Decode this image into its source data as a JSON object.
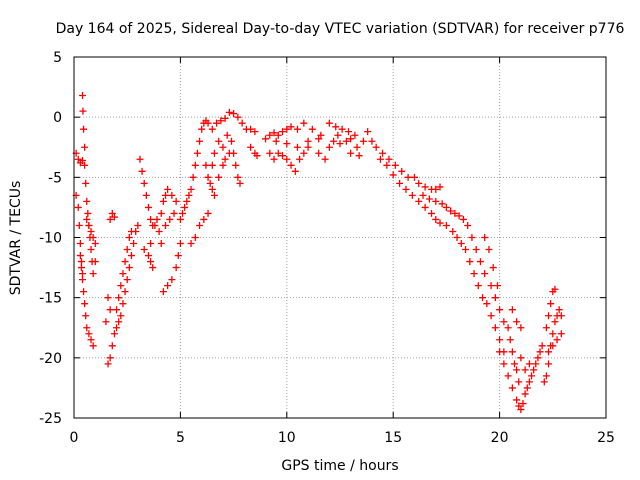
{
  "chart_data": {
    "type": "scatter",
    "title": "Day 164 of 2025, Sidereal Day-to-day VTEC variation (SDTVAR) for receiver p776",
    "xlabel": "GPS time / hours",
    "ylabel": "SDTVAR / TECUs",
    "xlim": [
      0,
      25
    ],
    "ylim": [
      -25,
      5
    ],
    "xticks": [
      0,
      5,
      10,
      15,
      20,
      25
    ],
    "yticks": [
      5,
      0,
      -5,
      -10,
      -15,
      -20,
      -25
    ],
    "xtick_labels": [
      "0",
      "5",
      "10",
      "15",
      "20",
      "25"
    ],
    "ytick_labels": [
      "5",
      "0",
      "-5",
      "-10",
      "-15",
      "-20",
      "-25"
    ],
    "grid": true,
    "marker": "+",
    "color": "#ff0000",
    "series": [
      {
        "name": "SDTVAR",
        "points": [
          [
            0.1,
            -3.0
          ],
          [
            0.2,
            -3.5
          ],
          [
            0.3,
            -3.8
          ],
          [
            0.4,
            -3.6
          ],
          [
            0.5,
            -4.0
          ],
          [
            0.1,
            -6.5
          ],
          [
            0.2,
            -7.5
          ],
          [
            0.25,
            -9.0
          ],
          [
            0.3,
            -10.5
          ],
          [
            0.35,
            -12.0
          ],
          [
            0.4,
            -13.0
          ],
          [
            0.45,
            -14.5
          ],
          [
            0.5,
            -15.5
          ],
          [
            0.55,
            -16.5
          ],
          [
            0.6,
            -17.5
          ],
          [
            0.7,
            -18.0
          ],
          [
            0.8,
            -18.5
          ],
          [
            0.9,
            -19.0
          ],
          [
            0.4,
            1.8
          ],
          [
            0.42,
            0.5
          ],
          [
            0.45,
            -1.0
          ],
          [
            0.5,
            -2.5
          ],
          [
            0.55,
            -5.5
          ],
          [
            0.6,
            -7.0
          ],
          [
            0.65,
            -8.0
          ],
          [
            0.7,
            -9.0
          ],
          [
            0.75,
            -10.0
          ],
          [
            0.8,
            -11.0
          ],
          [
            0.85,
            -12.0
          ],
          [
            0.9,
            -13.0
          ],
          [
            0.6,
            -8.5
          ],
          [
            0.7,
            -9.0
          ],
          [
            0.8,
            -9.5
          ],
          [
            0.9,
            -10.0
          ],
          [
            1.0,
            -10.5
          ],
          [
            1.0,
            -12.0
          ],
          [
            0.3,
            -11.5
          ],
          [
            0.35,
            -12.5
          ],
          [
            0.4,
            -13.5
          ],
          [
            1.5,
            -17.0
          ],
          [
            1.6,
            -15.0
          ],
          [
            1.7,
            -16.0
          ],
          [
            1.6,
            -20.5
          ],
          [
            1.7,
            -20.0
          ],
          [
            1.8,
            -19.0
          ],
          [
            1.9,
            -18.0
          ],
          [
            2.0,
            -17.5
          ],
          [
            2.1,
            -17.0
          ],
          [
            2.2,
            -16.5
          ],
          [
            2.3,
            -15.5
          ],
          [
            2.4,
            -14.5
          ],
          [
            2.5,
            -13.5
          ],
          [
            2.6,
            -12.5
          ],
          [
            2.7,
            -11.5
          ],
          [
            2.8,
            -10.5
          ],
          [
            2.9,
            -9.5
          ],
          [
            3.0,
            -9.0
          ],
          [
            2.0,
            -16.0
          ],
          [
            2.1,
            -15.0
          ],
          [
            2.2,
            -14.0
          ],
          [
            2.3,
            -13.0
          ],
          [
            2.4,
            -12.0
          ],
          [
            2.5,
            -11.0
          ],
          [
            2.6,
            -10.0
          ],
          [
            2.7,
            -9.5
          ],
          [
            1.7,
            -8.5
          ],
          [
            1.8,
            -8.0
          ],
          [
            1.9,
            -8.3
          ],
          [
            3.1,
            -3.5
          ],
          [
            3.2,
            -4.5
          ],
          [
            3.3,
            -5.5
          ],
          [
            3.4,
            -6.5
          ],
          [
            3.5,
            -7.5
          ],
          [
            3.6,
            -8.5
          ],
          [
            3.7,
            -9.0
          ],
          [
            3.8,
            -9.0
          ],
          [
            3.9,
            -8.5
          ],
          [
            4.0,
            -9.5
          ],
          [
            4.1,
            -10.5
          ],
          [
            3.6,
            -10.5
          ],
          [
            3.3,
            -11.0
          ],
          [
            3.5,
            -11.5
          ],
          [
            3.6,
            -12.0
          ],
          [
            3.7,
            -12.5
          ],
          [
            4.1,
            -8.0
          ],
          [
            4.2,
            -7.0
          ],
          [
            4.3,
            -6.5
          ],
          [
            4.4,
            -6.0
          ],
          [
            4.6,
            -6.5
          ],
          [
            4.8,
            -7.0
          ],
          [
            4.3,
            -9.0
          ],
          [
            4.5,
            -8.5
          ],
          [
            4.7,
            -8.0
          ],
          [
            4.2,
            -14.5
          ],
          [
            4.4,
            -14.0
          ],
          [
            4.6,
            -13.5
          ],
          [
            4.8,
            -12.5
          ],
          [
            4.9,
            -11.5
          ],
          [
            5.0,
            -10.5
          ],
          [
            5.0,
            -8.5
          ],
          [
            5.1,
            -8.0
          ],
          [
            5.2,
            -7.5
          ],
          [
            5.3,
            -7.0
          ],
          [
            5.4,
            -6.5
          ],
          [
            5.5,
            -6.0
          ],
          [
            5.6,
            -5.0
          ],
          [
            5.7,
            -4.0
          ],
          [
            5.8,
            -3.0
          ],
          [
            5.9,
            -2.0
          ],
          [
            6.0,
            -1.0
          ],
          [
            6.1,
            -0.5
          ],
          [
            6.2,
            -0.3
          ],
          [
            6.3,
            -0.5
          ],
          [
            6.5,
            -1.0
          ],
          [
            6.7,
            -0.5
          ],
          [
            6.9,
            -0.3
          ],
          [
            7.1,
            -0.1
          ],
          [
            7.3,
            0.4
          ],
          [
            7.5,
            0.3
          ],
          [
            7.7,
            0.0
          ],
          [
            7.9,
            -0.5
          ],
          [
            8.1,
            -1.0
          ],
          [
            5.5,
            -10.5
          ],
          [
            5.7,
            -10.0
          ],
          [
            5.9,
            -9.0
          ],
          [
            6.1,
            -8.5
          ],
          [
            6.3,
            -8.0
          ],
          [
            6.4,
            -5.5
          ],
          [
            6.5,
            -6.0
          ],
          [
            6.6,
            -6.5
          ],
          [
            6.8,
            -5.0
          ],
          [
            7.0,
            -4.0
          ],
          [
            6.2,
            -4.0
          ],
          [
            6.3,
            -5.0
          ],
          [
            6.5,
            -4.0
          ],
          [
            6.6,
            -3.0
          ],
          [
            6.8,
            -2.0
          ],
          [
            7.4,
            -2.0
          ],
          [
            7.5,
            -3.0
          ],
          [
            7.6,
            -4.0
          ],
          [
            7.7,
            -5.0
          ],
          [
            7.8,
            -5.5
          ],
          [
            7.0,
            -2.5
          ],
          [
            7.1,
            -3.5
          ],
          [
            7.2,
            -1.5
          ],
          [
            7.3,
            -3.0
          ],
          [
            8.3,
            -1.0
          ],
          [
            8.5,
            -1.2
          ],
          [
            8.3,
            -2.5
          ],
          [
            8.5,
            -3.0
          ],
          [
            8.6,
            -3.2
          ],
          [
            9.0,
            -1.8
          ],
          [
            9.2,
            -1.5
          ],
          [
            9.4,
            -1.3
          ],
          [
            9.6,
            -1.5
          ],
          [
            9.8,
            -1.2
          ],
          [
            10.0,
            -1.0
          ],
          [
            9.2,
            -3.0
          ],
          [
            9.4,
            -3.5
          ],
          [
            9.6,
            -3.0
          ],
          [
            9.8,
            -3.2
          ],
          [
            10.0,
            -3.5
          ],
          [
            10.2,
            -4.0
          ],
          [
            10.4,
            -4.5
          ],
          [
            10.6,
            -3.5
          ],
          [
            10.8,
            -3.0
          ],
          [
            11.0,
            -2.5
          ],
          [
            9.5,
            -2.0
          ],
          [
            10.0,
            -2.2
          ],
          [
            10.5,
            -2.5
          ],
          [
            11.0,
            -2.0
          ],
          [
            11.5,
            -1.8
          ],
          [
            10.2,
            -0.8
          ],
          [
            10.5,
            -1.0
          ],
          [
            10.8,
            -0.5
          ],
          [
            11.2,
            -1.0
          ],
          [
            11.6,
            -1.5
          ],
          [
            11.5,
            -3.0
          ],
          [
            11.8,
            -3.5
          ],
          [
            12.0,
            -2.5
          ],
          [
            12.2,
            -2.0
          ],
          [
            12.4,
            -1.5
          ],
          [
            12.0,
            -0.5
          ],
          [
            12.3,
            -0.8
          ],
          [
            12.6,
            -1.0
          ],
          [
            12.9,
            -1.2
          ],
          [
            13.2,
            -1.5
          ],
          [
            12.5,
            -2.2
          ],
          [
            12.8,
            -2.0
          ],
          [
            13.0,
            -1.8
          ],
          [
            13.3,
            -2.5
          ],
          [
            13.6,
            -2.0
          ],
          [
            13.0,
            -3.0
          ],
          [
            13.4,
            -3.2
          ],
          [
            13.8,
            -1.2
          ],
          [
            14.0,
            -2.0
          ],
          [
            14.2,
            -2.5
          ],
          [
            14.5,
            -3.0
          ],
          [
            14.8,
            -3.5
          ],
          [
            15.1,
            -4.0
          ],
          [
            15.4,
            -4.5
          ],
          [
            15.7,
            -5.0
          ],
          [
            14.4,
            -3.5
          ],
          [
            14.7,
            -4.0
          ],
          [
            15.0,
            -4.8
          ],
          [
            15.3,
            -5.5
          ],
          [
            15.6,
            -6.0
          ],
          [
            15.9,
            -6.5
          ],
          [
            16.0,
            -5.0
          ],
          [
            16.2,
            -5.5
          ],
          [
            16.5,
            -5.8
          ],
          [
            16.8,
            -6.0
          ],
          [
            17.0,
            -6.0
          ],
          [
            17.2,
            -5.8
          ],
          [
            16.2,
            -7.0
          ],
          [
            16.5,
            -7.5
          ],
          [
            16.8,
            -8.0
          ],
          [
            17.0,
            -8.5
          ],
          [
            17.2,
            -8.8
          ],
          [
            16.4,
            -6.5
          ],
          [
            16.7,
            -6.8
          ],
          [
            17.0,
            -7.0
          ],
          [
            17.3,
            -7.2
          ],
          [
            17.5,
            -7.5
          ],
          [
            17.7,
            -7.8
          ],
          [
            17.9,
            -8.0
          ],
          [
            18.1,
            -8.2
          ],
          [
            18.3,
            -8.5
          ],
          [
            17.5,
            -9.0
          ],
          [
            17.8,
            -9.5
          ],
          [
            18.0,
            -10.0
          ],
          [
            18.2,
            -10.5
          ],
          [
            18.5,
            -9.0
          ],
          [
            18.7,
            -10.0
          ],
          [
            18.9,
            -11.0
          ],
          [
            19.1,
            -12.0
          ],
          [
            19.3,
            -13.0
          ],
          [
            18.4,
            -11.0
          ],
          [
            18.6,
            -12.0
          ],
          [
            18.8,
            -13.0
          ],
          [
            19.0,
            -14.0
          ],
          [
            19.2,
            -15.0
          ],
          [
            19.3,
            -10.0
          ],
          [
            19.5,
            -11.0
          ],
          [
            19.7,
            -12.5
          ],
          [
            19.9,
            -14.0
          ],
          [
            19.4,
            -15.5
          ],
          [
            19.6,
            -16.5
          ],
          [
            19.8,
            -17.5
          ],
          [
            20.0,
            -18.5
          ],
          [
            20.2,
            -19.5
          ],
          [
            19.6,
            -14.0
          ],
          [
            19.8,
            -15.0
          ],
          [
            20.0,
            -16.0
          ],
          [
            20.2,
            -17.0
          ],
          [
            20.4,
            -17.5
          ],
          [
            20.0,
            -19.5
          ],
          [
            20.2,
            -20.5
          ],
          [
            20.4,
            -21.5
          ],
          [
            20.6,
            -22.5
          ],
          [
            20.8,
            -23.5
          ],
          [
            20.5,
            -18.5
          ],
          [
            20.6,
            -19.5
          ],
          [
            20.7,
            -20.5
          ],
          [
            20.8,
            -21.0
          ],
          [
            20.9,
            -22.0
          ],
          [
            20.9,
            -24.0
          ],
          [
            21.0,
            -24.3
          ],
          [
            21.1,
            -23.8
          ],
          [
            21.2,
            -23.0
          ],
          [
            21.3,
            -22.5
          ],
          [
            21.4,
            -22.0
          ],
          [
            21.5,
            -21.5
          ],
          [
            21.6,
            -21.0
          ],
          [
            21.7,
            -20.5
          ],
          [
            21.8,
            -20.0
          ],
          [
            21.9,
            -19.5
          ],
          [
            22.0,
            -19.0
          ],
          [
            20.6,
            -16.0
          ],
          [
            20.8,
            -17.0
          ],
          [
            21.0,
            -17.5
          ],
          [
            21.0,
            -20.0
          ],
          [
            21.2,
            -21.0
          ],
          [
            21.4,
            -20.5
          ],
          [
            22.1,
            -22.0
          ],
          [
            22.2,
            -21.5
          ],
          [
            22.3,
            -20.5
          ],
          [
            22.4,
            -19.0
          ],
          [
            22.5,
            -18.0
          ],
          [
            22.6,
            -17.0
          ],
          [
            22.7,
            -16.5
          ],
          [
            22.8,
            -16.0
          ],
          [
            22.9,
            -16.5
          ],
          [
            22.2,
            -17.5
          ],
          [
            22.3,
            -16.5
          ],
          [
            22.4,
            -15.5
          ],
          [
            22.5,
            -14.5
          ],
          [
            22.6,
            -14.3
          ],
          [
            22.3,
            -19.5
          ],
          [
            22.5,
            -19.0
          ],
          [
            22.7,
            -18.5
          ],
          [
            22.9,
            -18.0
          ]
        ]
      }
    ]
  }
}
